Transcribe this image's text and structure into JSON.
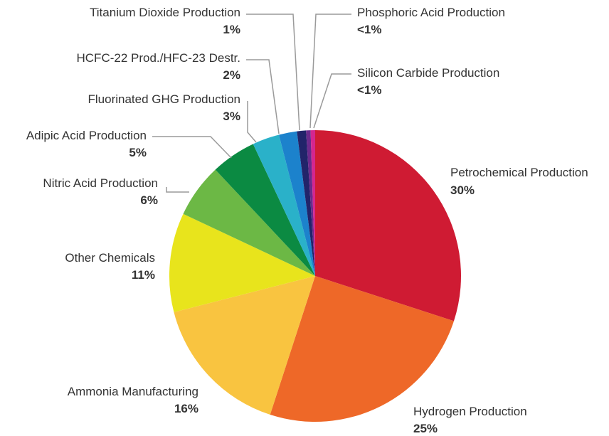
{
  "chart_data": {
    "type": "pie",
    "title": "",
    "series": [
      {
        "values": [
          {
            "label": "Petrochemical Production",
            "value": 30,
            "display": "30%",
            "color": "#cf1b33"
          },
          {
            "label": "Hydrogen Production",
            "value": 25,
            "display": "25%",
            "color": "#ee6828"
          },
          {
            "label": "Ammonia Manufacturing",
            "value": 16,
            "display": "16%",
            "color": "#f9c440"
          },
          {
            "label": "Other Chemicals",
            "value": 11,
            "display": "11%",
            "color": "#e8e41c"
          },
          {
            "label": "Nitric Acid Production",
            "value": 6,
            "display": "6%",
            "color": "#6cb845"
          },
          {
            "label": "Adipic Acid Production",
            "value": 5,
            "display": "5%",
            "color": "#0b8a42"
          },
          {
            "label": "Fluorinated GHG Production",
            "value": 3,
            "display": "3%",
            "color": "#2ab1c9"
          },
          {
            "label": "HCFC-22 Prod./HFC-23 Destr.",
            "value": 2,
            "display": "2%",
            "color": "#1c82cc"
          },
          {
            "label": "Titanium Dioxide Production",
            "value": 1,
            "display": "1%",
            "color": "#22246a"
          },
          {
            "label": "Silicon Carbide Production",
            "value": 0.5,
            "display": "<1%",
            "color": "#6b2a8c"
          },
          {
            "label": "Phosphoric Acid Production",
            "value": 0.5,
            "display": "<1%",
            "color": "#d4268f"
          }
        ]
      }
    ],
    "legend": "none",
    "labels": "outside-with-leader-lines"
  }
}
